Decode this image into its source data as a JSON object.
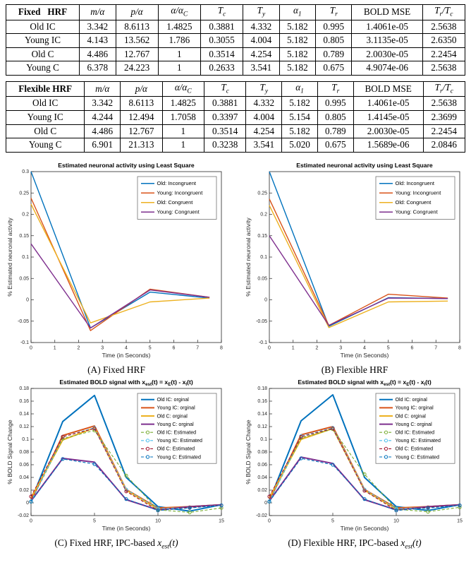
{
  "captions": {
    "a": "(A) Fixed HRF",
    "b": "(B) Flexible HRF",
    "c": "(C) Fixed HRF, IPC-based $x_est(t)$",
    "d": "(D) Flexible HRF, IPC-based $x_est(t)$"
  },
  "tables": [
    {
      "name": "fixed-hrf",
      "columns": [
        "Fixed   HRF",
        "$m/α$",
        "$p/α$",
        "$α/α_C$",
        "$T_c$",
        "$T_y$",
        "$α_1$",
        "$T_r$",
        "BOLD MSE",
        "$T_r/T_c$"
      ],
      "rows": [
        [
          "Old IC",
          "3.342",
          "8.6113",
          "1.4825",
          "0.3881",
          "4.332",
          "5.182",
          "0.995",
          "1.4061e-05",
          "2.5638"
        ],
        [
          "Young IC",
          "4.143",
          "13.562",
          "1.786",
          "0.3055",
          "4.004",
          "5.182",
          "0.805",
          "3.1135e-05",
          "2.6350"
        ],
        [
          "Old C",
          "4.486",
          "12.767",
          "1",
          "0.3514",
          "4.254",
          "5.182",
          "0.789",
          "2.0030e-05",
          "2.2454"
        ],
        [
          "Young C",
          "6.378",
          "24.223",
          "1",
          "0.2633",
          "3.541",
          "5.182",
          "0.675",
          "4.9074e-06",
          "2.5638"
        ]
      ]
    },
    {
      "name": "flexible-hrf",
      "columns": [
        "Flexible HRF",
        "$m/α$",
        "$p/α$",
        "$α/α_C$",
        "$T_c$",
        "$T_y$",
        "$α_1$",
        "$T_r$",
        "BOLD MSE",
        "$T_r/T_c$"
      ],
      "rows": [
        [
          "Old IC",
          "3.342",
          "8.6113",
          "1.4825",
          "0.3881",
          "4.332",
          "5.182",
          "0.995",
          "1.4061e-05",
          "2.5638"
        ],
        [
          "Young IC",
          "4.244",
          "12.494",
          "1.7058",
          "0.3397",
          "4.004",
          "5.154",
          "0.805",
          "1.4145e-05",
          "2.3699"
        ],
        [
          "Old C",
          "4.486",
          "12.767",
          "1",
          "0.3514",
          "4.254",
          "5.182",
          "0.789",
          "2.0030e-05",
          "2.2454"
        ],
        [
          "Young C",
          "6.901",
          "21.313",
          "1",
          "0.3238",
          "3.541",
          "5.020",
          "0.675",
          "1.5689e-06",
          "2.0846"
        ]
      ]
    }
  ],
  "chart_data": [
    {
      "id": "A",
      "type": "line",
      "title": "Estimated neuronal activity using Least Square",
      "xlabel": "Time (in Seconds)",
      "ylabel": "% Estimated neuronal activity",
      "xlim": [
        0,
        8
      ],
      "ylim": [
        -0.1,
        0.3
      ],
      "xticks": [
        0,
        1,
        2,
        3,
        4,
        5,
        6,
        7,
        8
      ],
      "yticks": [
        -0.1,
        -0.05,
        0,
        0.05,
        0.1,
        0.15,
        0.2,
        0.25,
        0.3
      ],
      "grid": false,
      "legend_position": "top-right",
      "x": [
        0,
        2.5,
        5,
        7.5
      ],
      "series": [
        {
          "name": "Old: Incongruent",
          "color": "#0072BD",
          "style": "solid",
          "lw": 1.4,
          "marker": false,
          "values": [
            0.3,
            -0.066,
            0.018,
            0.004
          ]
        },
        {
          "name": "Young: Incongruent",
          "color": "#D95319",
          "style": "solid",
          "lw": 1.4,
          "marker": false,
          "values": [
            0.238,
            -0.072,
            0.025,
            0.006
          ]
        },
        {
          "name": "Old: Congruent",
          "color": "#EDB120",
          "style": "solid",
          "lw": 1.4,
          "marker": false,
          "values": [
            0.224,
            -0.054,
            -0.005,
            0.004
          ]
        },
        {
          "name": "Young: Congruent",
          "color": "#7E2F8E",
          "style": "solid",
          "lw": 1.4,
          "marker": false,
          "values": [
            0.131,
            -0.066,
            0.023,
            0.006
          ]
        }
      ]
    },
    {
      "id": "B",
      "type": "line",
      "title": "Estimated neuronal activity using Least Square",
      "xlabel": "Time (in Seconds)",
      "ylabel": "% Estimated neuronal activity",
      "xlim": [
        0,
        8
      ],
      "ylim": [
        -0.1,
        0.3
      ],
      "xticks": [
        0,
        1,
        2,
        3,
        4,
        5,
        6,
        7,
        8
      ],
      "yticks": [
        -0.1,
        -0.05,
        0,
        0.05,
        0.1,
        0.15,
        0.2,
        0.25
      ],
      "grid": false,
      "legend_position": "top-right",
      "x": [
        0,
        2.5,
        5,
        7.5
      ],
      "series": [
        {
          "name": "Old: Incongruent",
          "color": "#0072BD",
          "style": "solid",
          "lw": 1.4,
          "marker": false,
          "values": [
            0.3,
            -0.062,
            0.005,
            0.003
          ]
        },
        {
          "name": "Young: Incongruent",
          "color": "#D95319",
          "style": "solid",
          "lw": 1.4,
          "marker": false,
          "values": [
            0.236,
            -0.06,
            0.013,
            0.004
          ]
        },
        {
          "name": "Old: Congruent",
          "color": "#EDB120",
          "style": "solid",
          "lw": 1.4,
          "marker": false,
          "values": [
            0.221,
            -0.065,
            -0.005,
            -0.003
          ]
        },
        {
          "name": "Young: Congruent",
          "color": "#7E2F8E",
          "style": "solid",
          "lw": 1.4,
          "marker": false,
          "values": [
            0.15,
            -0.06,
            0.004,
            0.003
          ]
        }
      ]
    },
    {
      "id": "C",
      "type": "line",
      "title": "Estimated BOLD signal with x_est(t) = x_E(t) - x_I(t)",
      "xlabel": "Time (in Seconds)",
      "ylabel": "% BOLD Signal Change",
      "xlim": [
        0,
        15
      ],
      "ylim": [
        -0.02,
        0.18
      ],
      "xticks": [
        0,
        5,
        10,
        15
      ],
      "yticks": [
        -0.02,
        0,
        0.02,
        0.04,
        0.06,
        0.08,
        0.1,
        0.12,
        0.14,
        0.16,
        0.18
      ],
      "grid": false,
      "legend_position": "top-right",
      "x": [
        0,
        2.5,
        5,
        7.5,
        10,
        12.5,
        15
      ],
      "series": [
        {
          "name": "Old IC: orginal",
          "color": "#0072BD",
          "style": "solid",
          "lw": 2.0,
          "marker": false,
          "values": [
            0.003,
            0.128,
            0.169,
            0.04,
            -0.006,
            -0.013,
            -0.003
          ]
        },
        {
          "name": "Young IC: orginal",
          "color": "#D95319",
          "style": "solid",
          "lw": 2.0,
          "marker": false,
          "values": [
            0.003,
            0.106,
            0.121,
            0.021,
            -0.008,
            -0.006,
            -0.003
          ]
        },
        {
          "name": "Old C: orginal",
          "color": "#EDB120",
          "style": "solid",
          "lw": 2.0,
          "marker": false,
          "values": [
            0.008,
            0.099,
            0.118,
            0.02,
            -0.01,
            -0.006,
            -0.003
          ]
        },
        {
          "name": "Young C: orginal",
          "color": "#7E2F8E",
          "style": "solid",
          "lw": 2.0,
          "marker": false,
          "values": [
            0.003,
            0.07,
            0.064,
            0.005,
            -0.011,
            -0.006,
            -0.003
          ]
        },
        {
          "name": "Old IC: Estimated",
          "color": "#77AC30",
          "style": "dashed",
          "lw": 1.1,
          "marker": true,
          "values": [
            0.002,
            0.101,
            0.114,
            0.043,
            -0.011,
            -0.015,
            -0.008
          ]
        },
        {
          "name": "Young IC: Estimated",
          "color": "#4DBEEE",
          "style": "dashed",
          "lw": 1.1,
          "marker": true,
          "values": [
            0.002,
            0.104,
            0.118,
            0.021,
            -0.009,
            -0.008,
            -0.004
          ]
        },
        {
          "name": "Old C: Estimated",
          "color": "#A2142F",
          "style": "dashed",
          "lw": 1.1,
          "marker": true,
          "values": [
            0.01,
            0.104,
            0.117,
            0.018,
            -0.012,
            -0.007,
            -0.004
          ]
        },
        {
          "name": "Young C: Estimated",
          "color": "#0072BD",
          "style": "dashed",
          "lw": 1.1,
          "marker": true,
          "values": [
            0.002,
            0.069,
            0.061,
            0.006,
            -0.012,
            -0.008,
            -0.004
          ]
        }
      ]
    },
    {
      "id": "D",
      "type": "line",
      "title": "Estimated BOLD signal with x_est(t) = x_E(t) - x_I(t)",
      "xlabel": "Time (in Seconds)",
      "ylabel": "% BOLD Signal Change",
      "xlim": [
        0,
        15
      ],
      "ylim": [
        -0.02,
        0.18
      ],
      "xticks": [
        0,
        5,
        10,
        15
      ],
      "yticks": [
        -0.02,
        0,
        0.02,
        0.04,
        0.06,
        0.08,
        0.1,
        0.12,
        0.14,
        0.16,
        0.18
      ],
      "grid": false,
      "legend_position": "top-right",
      "x": [
        0,
        2.5,
        5,
        7.5,
        10,
        12.5,
        15
      ],
      "series": [
        {
          "name": "Old IC: orginal",
          "color": "#0072BD",
          "style": "solid",
          "lw": 2.0,
          "marker": false,
          "values": [
            0.003,
            0.129,
            0.17,
            0.04,
            -0.006,
            -0.012,
            -0.003
          ]
        },
        {
          "name": "Young IC: orginal",
          "color": "#D95319",
          "style": "solid",
          "lw": 2.0,
          "marker": false,
          "values": [
            0.003,
            0.107,
            0.12,
            0.021,
            -0.008,
            -0.006,
            -0.003
          ]
        },
        {
          "name": "Old C: orginal",
          "color": "#EDB120",
          "style": "solid",
          "lw": 2.0,
          "marker": false,
          "values": [
            0.008,
            0.1,
            0.117,
            0.02,
            -0.01,
            -0.006,
            -0.003
          ]
        },
        {
          "name": "Young C: orginal",
          "color": "#7E2F8E",
          "style": "solid",
          "lw": 2.0,
          "marker": false,
          "values": [
            0.003,
            0.072,
            0.062,
            0.005,
            -0.011,
            -0.006,
            -0.003
          ]
        },
        {
          "name": "Old IC: Estimated",
          "color": "#77AC30",
          "style": "dashed",
          "lw": 1.1,
          "marker": true,
          "values": [
            0.002,
            0.102,
            0.116,
            0.045,
            -0.01,
            -0.014,
            -0.007
          ]
        },
        {
          "name": "Young IC: Estimated",
          "color": "#4DBEEE",
          "style": "dashed",
          "lw": 1.1,
          "marker": true,
          "values": [
            0.002,
            0.105,
            0.118,
            0.021,
            -0.009,
            -0.008,
            -0.004
          ]
        },
        {
          "name": "Old C: Estimated",
          "color": "#A2142F",
          "style": "dashed",
          "lw": 1.1,
          "marker": true,
          "values": [
            0.01,
            0.104,
            0.117,
            0.019,
            -0.012,
            -0.007,
            -0.004
          ]
        },
        {
          "name": "Young C: Estimated",
          "color": "#0072BD",
          "style": "dashed",
          "lw": 1.1,
          "marker": true,
          "values": [
            0.002,
            0.07,
            0.06,
            0.006,
            -0.012,
            -0.008,
            -0.004
          ]
        }
      ]
    }
  ]
}
